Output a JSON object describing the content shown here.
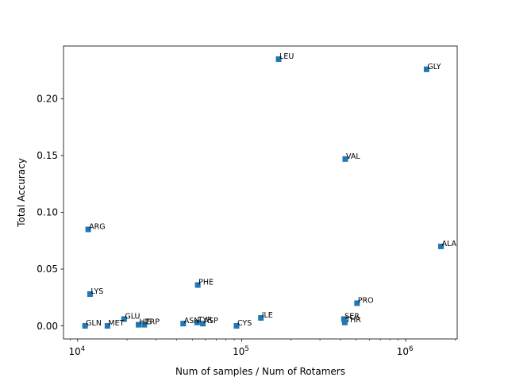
{
  "chart_data": {
    "type": "scatter",
    "title": "",
    "xlabel": "Num of samples / Num of Rotamers",
    "ylabel": "Total Accuracy",
    "xscale": "log",
    "xlim": [
      8200,
      2060000
    ],
    "ylim": [
      -0.0115,
      0.2465
    ],
    "grid": false,
    "marker": "square",
    "color": "#1f77b4",
    "x_ticks": [
      {
        "value": 10000,
        "base": "10",
        "exp": "4"
      },
      {
        "value": 100000,
        "base": "10",
        "exp": "5"
      },
      {
        "value": 1000000,
        "base": "10",
        "exp": "6"
      }
    ],
    "y_ticks": [
      {
        "value": 0.0,
        "label": "0.00"
      },
      {
        "value": 0.05,
        "label": "0.05"
      },
      {
        "value": 0.1,
        "label": "0.10"
      },
      {
        "value": 0.15,
        "label": "0.15"
      },
      {
        "value": 0.2,
        "label": "0.20"
      }
    ],
    "points": [
      {
        "label": "LEU",
        "x": 168000,
        "y": 0.235
      },
      {
        "label": "GLY",
        "x": 1340000,
        "y": 0.226
      },
      {
        "label": "VAL",
        "x": 428000,
        "y": 0.147
      },
      {
        "label": "ARG",
        "x": 11600,
        "y": 0.085
      },
      {
        "label": "ALA",
        "x": 1640000,
        "y": 0.07
      },
      {
        "label": "PHE",
        "x": 54000,
        "y": 0.036
      },
      {
        "label": "LYS",
        "x": 11900,
        "y": 0.028
      },
      {
        "label": "PRO",
        "x": 505000,
        "y": 0.02
      },
      {
        "label": "GLU",
        "x": 19200,
        "y": 0.006
      },
      {
        "label": "ILE",
        "x": 131000,
        "y": 0.007
      },
      {
        "label": "SER",
        "x": 420000,
        "y": 0.006
      },
      {
        "label": "THR",
        "x": 425000,
        "y": 0.003
      },
      {
        "label": "TYR",
        "x": 53500,
        "y": 0.003
      },
      {
        "label": "ASN",
        "x": 44000,
        "y": 0.002
      },
      {
        "label": "ASP",
        "x": 58000,
        "y": 0.002
      },
      {
        "label": "HIS",
        "x": 23500,
        "y": 0.001
      },
      {
        "label": "TRP",
        "x": 25500,
        "y": 0.001
      },
      {
        "label": "MET",
        "x": 15200,
        "y": 0.0
      },
      {
        "label": "GLN",
        "x": 11100,
        "y": 0.0
      },
      {
        "label": "CYS",
        "x": 93000,
        "y": 0.0
      }
    ]
  }
}
